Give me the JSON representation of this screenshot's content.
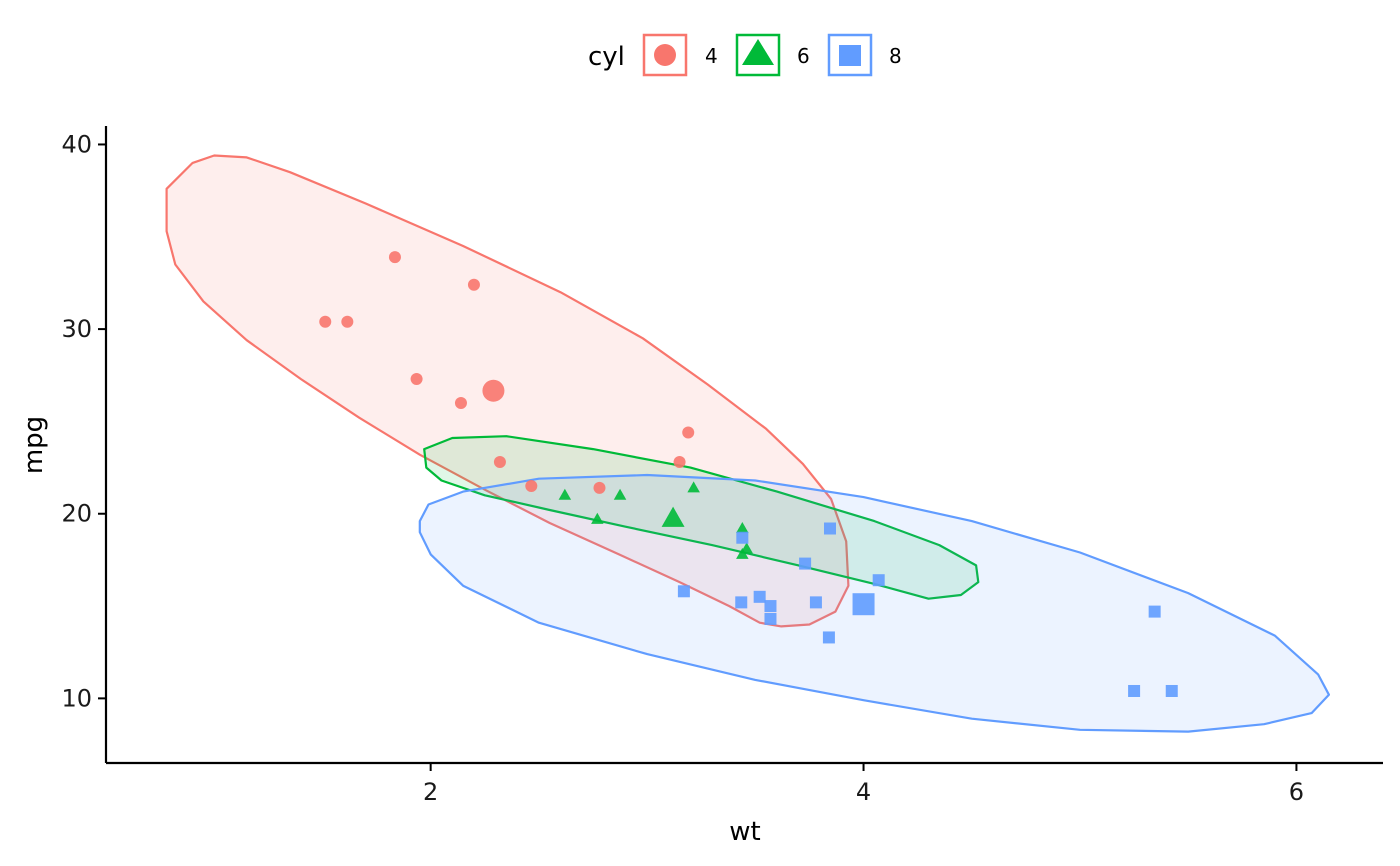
{
  "chart_data": {
    "type": "scatter",
    "title": "",
    "xlabel": "wt",
    "ylabel": "mpg",
    "xlim": [
      0.5,
      6.4
    ],
    "ylim": [
      6.5,
      41
    ],
    "x_ticks": [
      2,
      4,
      6
    ],
    "y_ticks": [
      10,
      20,
      30,
      40
    ],
    "x_tick_labels": [
      "2",
      "4",
      "6"
    ],
    "y_tick_labels": [
      "10",
      "20",
      "30",
      "40"
    ],
    "grid": false,
    "legend": {
      "title": "cyl",
      "position": "top",
      "entries": [
        {
          "label": "4",
          "shape": "circle",
          "color": "#F8766D"
        },
        {
          "label": "6",
          "shape": "triangle",
          "color": "#00BA38"
        },
        {
          "label": "8",
          "shape": "square",
          "color": "#619CFF"
        }
      ]
    },
    "series": [
      {
        "name": "4",
        "shape": "circle",
        "color": "#F8766D",
        "points": [
          {
            "x": 2.32,
            "y": 22.8
          },
          {
            "x": 3.19,
            "y": 24.4
          },
          {
            "x": 3.15,
            "y": 22.8
          },
          {
            "x": 2.2,
            "y": 32.4
          },
          {
            "x": 1.615,
            "y": 30.4
          },
          {
            "x": 1.835,
            "y": 33.9
          },
          {
            "x": 2.465,
            "y": 21.5
          },
          {
            "x": 1.935,
            "y": 27.3
          },
          {
            "x": 2.14,
            "y": 26.0
          },
          {
            "x": 1.513,
            "y": 30.4
          },
          {
            "x": 2.78,
            "y": 21.4
          }
        ],
        "mean": {
          "x": 2.29,
          "y": 26.66
        },
        "ellipse": [
          [
            1.0,
            39.4
          ],
          [
            0.9,
            39.0
          ],
          [
            0.78,
            37.6
          ],
          [
            0.78,
            35.3
          ],
          [
            0.82,
            33.5
          ],
          [
            0.95,
            31.5
          ],
          [
            1.15,
            29.4
          ],
          [
            1.4,
            27.3
          ],
          [
            1.67,
            25.2
          ],
          [
            1.95,
            23.2
          ],
          [
            2.25,
            21.3
          ],
          [
            2.55,
            19.5
          ],
          [
            2.87,
            17.8
          ],
          [
            3.15,
            16.3
          ],
          [
            3.38,
            15.0
          ],
          [
            3.52,
            14.1
          ],
          [
            3.62,
            13.9
          ],
          [
            3.75,
            14.0
          ],
          [
            3.87,
            14.7
          ],
          [
            3.93,
            16.1
          ],
          [
            3.92,
            18.5
          ],
          [
            3.85,
            20.8
          ],
          [
            3.72,
            22.7
          ],
          [
            3.55,
            24.6
          ],
          [
            3.28,
            27.0
          ],
          [
            2.98,
            29.5
          ],
          [
            2.6,
            32.0
          ],
          [
            2.15,
            34.5
          ],
          [
            1.7,
            36.8
          ],
          [
            1.35,
            38.5
          ],
          [
            1.15,
            39.3
          ]
        ]
      },
      {
        "name": "6",
        "shape": "triangle",
        "color": "#00BA38",
        "points": [
          {
            "x": 2.62,
            "y": 21.0
          },
          {
            "x": 2.875,
            "y": 21.0
          },
          {
            "x": 3.215,
            "y": 21.4
          },
          {
            "x": 3.46,
            "y": 18.1
          },
          {
            "x": 3.44,
            "y": 19.2
          },
          {
            "x": 3.44,
            "y": 17.8
          },
          {
            "x": 2.77,
            "y": 19.7
          }
        ],
        "mean": {
          "x": 3.12,
          "y": 19.74
        },
        "ellipse": [
          [
            1.98,
            22.5
          ],
          [
            2.05,
            21.8
          ],
          [
            2.25,
            21.0
          ],
          [
            2.55,
            20.2
          ],
          [
            2.9,
            19.3
          ],
          [
            3.3,
            18.3
          ],
          [
            3.7,
            17.2
          ],
          [
            4.05,
            16.2
          ],
          [
            4.3,
            15.4
          ],
          [
            4.45,
            15.6
          ],
          [
            4.53,
            16.3
          ],
          [
            4.52,
            17.2
          ],
          [
            4.35,
            18.3
          ],
          [
            4.05,
            19.6
          ],
          [
            3.6,
            21.2
          ],
          [
            3.2,
            22.5
          ],
          [
            2.75,
            23.5
          ],
          [
            2.35,
            24.2
          ],
          [
            2.1,
            24.1
          ],
          [
            1.97,
            23.5
          ]
        ]
      },
      {
        "name": "8",
        "shape": "square",
        "color": "#619CFF",
        "points": [
          {
            "x": 3.44,
            "y": 18.7
          },
          {
            "x": 3.57,
            "y": 14.3
          },
          {
            "x": 4.07,
            "y": 16.4
          },
          {
            "x": 3.73,
            "y": 17.3
          },
          {
            "x": 3.78,
            "y": 15.2
          },
          {
            "x": 5.25,
            "y": 10.4
          },
          {
            "x": 5.424,
            "y": 10.4
          },
          {
            "x": 5.345,
            "y": 14.7
          },
          {
            "x": 3.52,
            "y": 15.5
          },
          {
            "x": 3.435,
            "y": 15.2
          },
          {
            "x": 3.84,
            "y": 13.3
          },
          {
            "x": 3.845,
            "y": 19.2
          },
          {
            "x": 3.17,
            "y": 15.8
          },
          {
            "x": 3.57,
            "y": 15.0
          }
        ],
        "mean": {
          "x": 4.0,
          "y": 15.1
        },
        "ellipse": [
          [
            1.95,
            19.6
          ],
          [
            1.99,
            20.5
          ],
          [
            2.15,
            21.2
          ],
          [
            2.5,
            21.9
          ],
          [
            3.0,
            22.1
          ],
          [
            3.5,
            21.8
          ],
          [
            4.0,
            20.9
          ],
          [
            4.5,
            19.6
          ],
          [
            5.0,
            17.9
          ],
          [
            5.5,
            15.7
          ],
          [
            5.9,
            13.4
          ],
          [
            6.1,
            11.3
          ],
          [
            6.15,
            10.2
          ],
          [
            6.07,
            9.2
          ],
          [
            5.85,
            8.6
          ],
          [
            5.5,
            8.2
          ],
          [
            5.0,
            8.3
          ],
          [
            4.5,
            8.9
          ],
          [
            4.0,
            9.9
          ],
          [
            3.5,
            11.0
          ],
          [
            3.0,
            12.4
          ],
          [
            2.5,
            14.1
          ],
          [
            2.15,
            16.1
          ],
          [
            2.0,
            17.8
          ],
          [
            1.95,
            19.0
          ]
        ]
      }
    ]
  }
}
